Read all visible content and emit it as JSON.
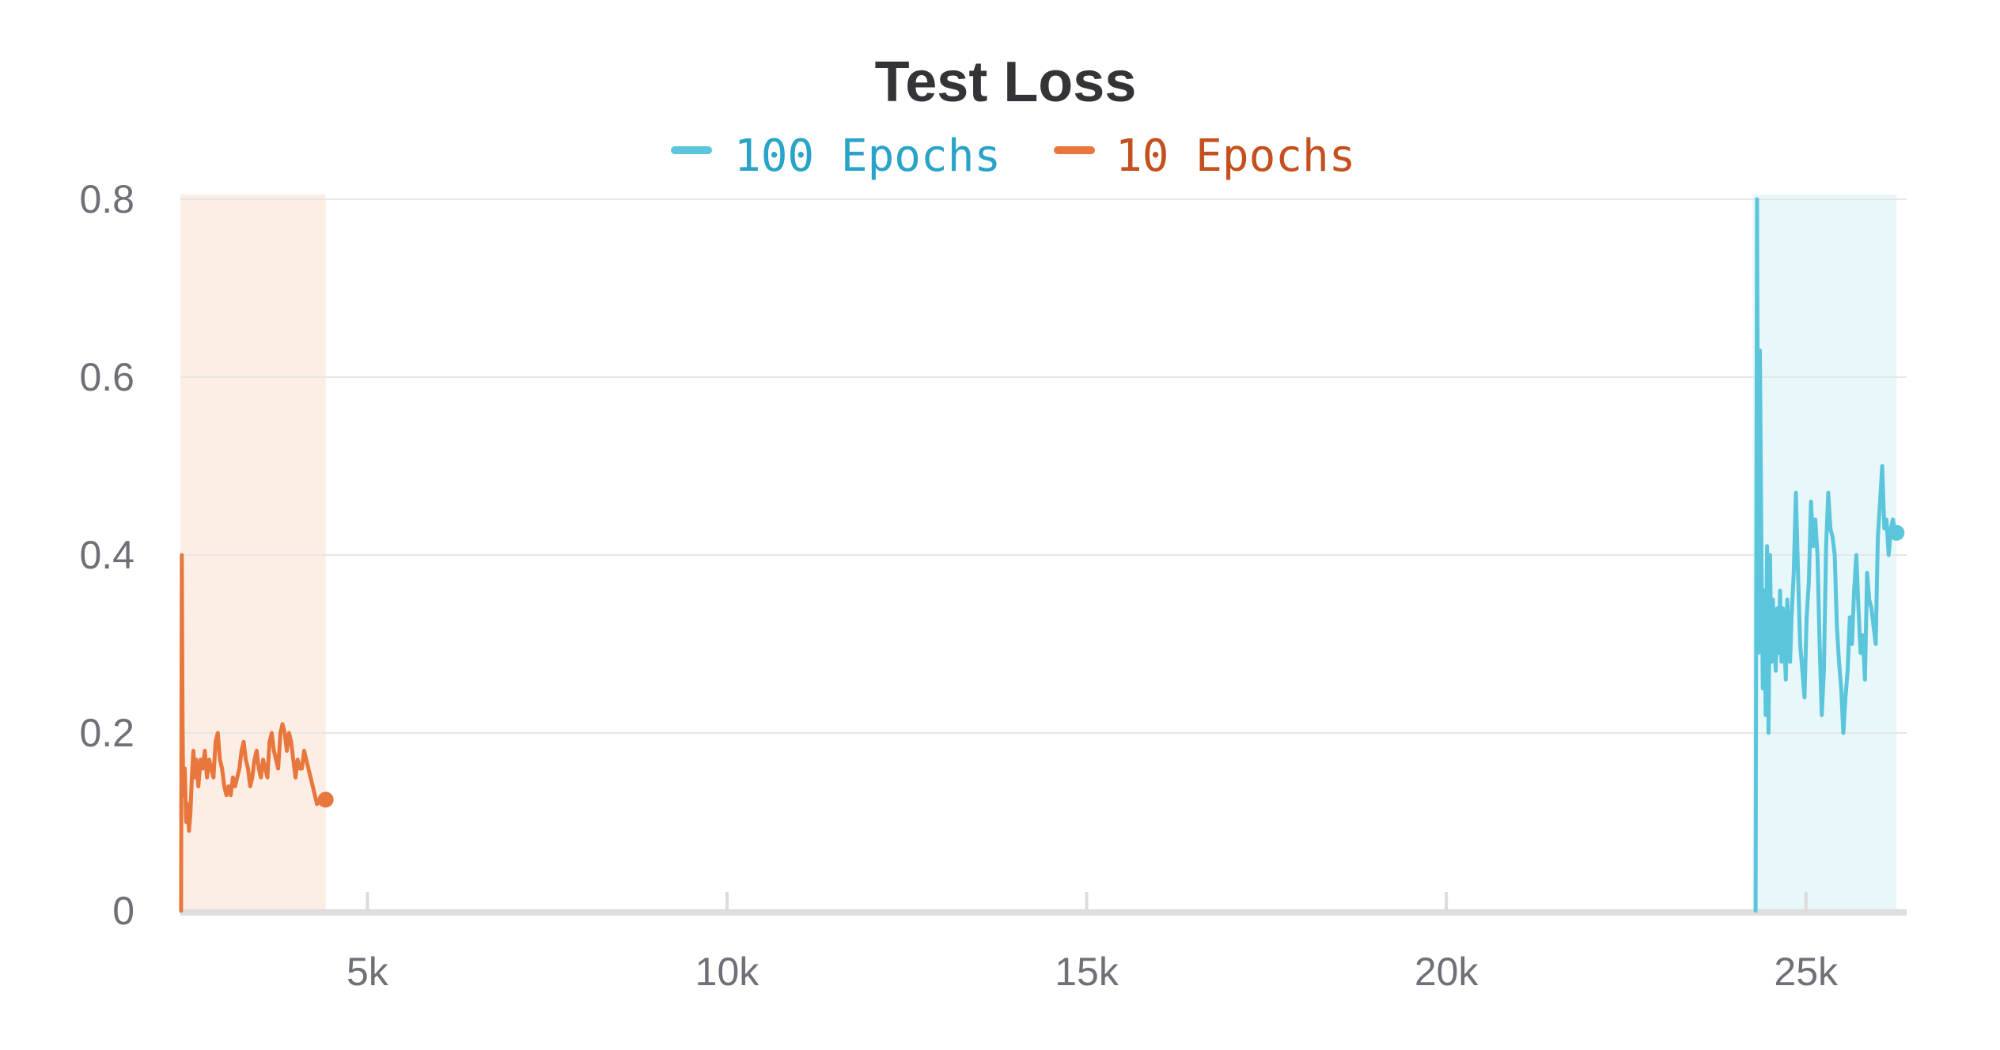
{
  "chart_data": {
    "type": "line",
    "title": "Test Loss",
    "xlabel": "",
    "ylabel": "",
    "xlim": [
      2400,
      26400
    ],
    "ylim": [
      0,
      0.8
    ],
    "x_ticks": [
      5000,
      10000,
      15000,
      20000,
      25000
    ],
    "x_tick_labels": [
      "5k",
      "10k",
      "15k",
      "20k",
      "25k"
    ],
    "y_ticks": [
      0,
      0.2,
      0.4,
      0.6,
      0.8
    ],
    "y_tick_labels": [
      "0",
      "0.2",
      "0.4",
      "0.6",
      "0.8"
    ],
    "grid": true,
    "legend_position": "top-center",
    "series": [
      {
        "name": "100 Epochs",
        "color": "#5bc5db",
        "legend_text_color": "#2aa3c9",
        "x": [
          24300,
          24320,
          24340,
          24360,
          24380,
          24400,
          24420,
          24440,
          24460,
          24480,
          24500,
          24520,
          24540,
          24560,
          24580,
          24600,
          24620,
          24640,
          24660,
          24680,
          24700,
          24720,
          24740,
          24760,
          24780,
          24800,
          24830,
          24860,
          24890,
          24920,
          24950,
          24980,
          25010,
          25040,
          25070,
          25100,
          25130,
          25160,
          25190,
          25220,
          25250,
          25280,
          25310,
          25340,
          25370,
          25400,
          25430,
          25460,
          25490,
          25520,
          25550,
          25580,
          25610,
          25640,
          25670,
          25700,
          25730,
          25760,
          25790,
          25820,
          25850,
          25880,
          25910,
          25940,
          25970,
          26000,
          26030,
          26060,
          26090,
          26120,
          26150,
          26180,
          26210,
          26230,
          26250,
          26260
        ],
        "y": [
          0.0,
          0.8,
          0.29,
          0.63,
          0.42,
          0.25,
          0.36,
          0.22,
          0.41,
          0.2,
          0.4,
          0.28,
          0.35,
          0.3,
          0.27,
          0.34,
          0.29,
          0.36,
          0.28,
          0.34,
          0.3,
          0.26,
          0.35,
          0.31,
          0.28,
          0.33,
          0.38,
          0.47,
          0.38,
          0.3,
          0.27,
          0.24,
          0.33,
          0.37,
          0.46,
          0.41,
          0.44,
          0.4,
          0.3,
          0.22,
          0.27,
          0.41,
          0.47,
          0.43,
          0.42,
          0.4,
          0.32,
          0.28,
          0.25,
          0.2,
          0.24,
          0.27,
          0.33,
          0.3,
          0.36,
          0.4,
          0.34,
          0.29,
          0.31,
          0.26,
          0.38,
          0.35,
          0.34,
          0.32,
          0.3,
          0.42,
          0.46,
          0.5,
          0.43,
          0.44,
          0.4,
          0.43,
          0.44,
          0.43,
          0.43,
          0.425
        ]
      },
      {
        "name": "10 Epochs",
        "color": "#e8773d",
        "legend_text_color": "#c4501e",
        "x": [
          2410,
          2420,
          2430,
          2440,
          2460,
          2480,
          2500,
          2520,
          2540,
          2560,
          2580,
          2600,
          2620,
          2650,
          2680,
          2710,
          2740,
          2770,
          2800,
          2830,
          2860,
          2890,
          2920,
          2950,
          2980,
          3010,
          3040,
          3070,
          3100,
          3130,
          3160,
          3190,
          3220,
          3250,
          3280,
          3310,
          3340,
          3370,
          3400,
          3430,
          3460,
          3490,
          3520,
          3550,
          3580,
          3610,
          3640,
          3670,
          3700,
          3730,
          3760,
          3790,
          3820,
          3850,
          3880,
          3910,
          3940,
          3970,
          4000,
          4030,
          4060,
          4090,
          4120,
          4150,
          4180,
          4210,
          4240,
          4270,
          4300,
          4330,
          4360,
          4390,
          4420
        ],
        "y": [
          0.0,
          0.4,
          0.22,
          0.13,
          0.16,
          0.1,
          0.12,
          0.09,
          0.11,
          0.15,
          0.18,
          0.15,
          0.17,
          0.14,
          0.17,
          0.16,
          0.18,
          0.15,
          0.17,
          0.16,
          0.15,
          0.19,
          0.2,
          0.17,
          0.16,
          0.14,
          0.13,
          0.14,
          0.13,
          0.15,
          0.14,
          0.15,
          0.16,
          0.18,
          0.19,
          0.17,
          0.16,
          0.14,
          0.15,
          0.17,
          0.18,
          0.16,
          0.15,
          0.17,
          0.16,
          0.15,
          0.19,
          0.2,
          0.18,
          0.17,
          0.16,
          0.2,
          0.21,
          0.2,
          0.18,
          0.2,
          0.19,
          0.17,
          0.15,
          0.17,
          0.16,
          0.16,
          0.18,
          0.17,
          0.16,
          0.15,
          0.14,
          0.13,
          0.12,
          0.125,
          0.12,
          0.125,
          0.125
        ]
      }
    ],
    "shaded_bands": [
      {
        "series": "10 Epochs",
        "x_range": [
          2400,
          4420
        ],
        "color": "#fdeee5"
      },
      {
        "series": "100 Epochs",
        "x_range": [
          24260,
          26260
        ],
        "color": "#e8f7fa"
      }
    ]
  }
}
